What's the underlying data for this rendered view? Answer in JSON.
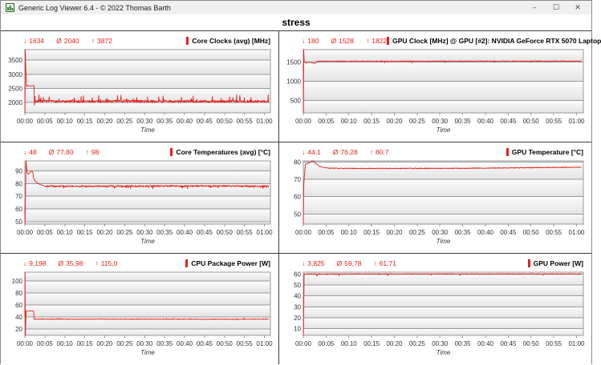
{
  "window": {
    "title": "Generic Log Viewer 6.4 - © 2022 Thomas Barth",
    "controls": {
      "minimize": "–",
      "maximize": "☐",
      "close": "✕"
    }
  },
  "header": {
    "title": "stress"
  },
  "stats_symbols": {
    "min": "↓",
    "avg": "Ø",
    "max": "↑"
  },
  "colors": {
    "accent": "#e2231a",
    "grid_line": "#9a9a9a",
    "plot_border": "#9a9a9a",
    "panel_border": "#3f3f3f",
    "titlebar_bg": "#f0f0f0",
    "band_top": "#fcfcfc",
    "band_bottom": "#e3e3e3",
    "tick_text": "#333333"
  },
  "axis": {
    "x_label": "Time",
    "x_tick_minutes": [
      0,
      5,
      10,
      15,
      20,
      25,
      30,
      35,
      40,
      45,
      50,
      55,
      60
    ],
    "x_tick_labels": [
      "00:00",
      "00:05",
      "00:10",
      "00:15",
      "00:20",
      "00:25",
      "00:30",
      "00:35",
      "00:40",
      "00:45",
      "00:50",
      "00:55",
      "01:00"
    ],
    "xlim": [
      0,
      61.5
    ]
  },
  "chart_data": [
    {
      "type": "line",
      "title": "Core Clocks (avg) [MHz]",
      "min": "1634",
      "avg": "2040",
      "max": "3872",
      "ylim": [
        1634,
        3872
      ],
      "y_ticks": [
        2000,
        2500,
        3000,
        3500
      ],
      "points": [
        [
          0,
          2600
        ],
        [
          0.03,
          1634
        ],
        [
          0.1,
          3872
        ],
        [
          0.25,
          3100
        ],
        [
          0.4,
          2580
        ],
        [
          0.8,
          2600
        ],
        [
          1.4,
          2580
        ],
        [
          2.0,
          2600
        ],
        [
          2.3,
          2600
        ],
        [
          2.38,
          1900
        ],
        [
          2.5,
          2040
        ],
        [
          61,
          2040
        ]
      ],
      "noise": {
        "from": 2.5,
        "amp": 45,
        "spike_p": 0.1,
        "spike_amp": 230
      },
      "seed": 7
    },
    {
      "type": "line",
      "title": "GPU Clock [MHz] @ GPU [#2]: NVIDIA GeForce RTX 5070 Laptop",
      "min": "180",
      "avg": "1528",
      "max": "1822",
      "ylim": [
        180,
        1822
      ],
      "y_ticks": [
        500,
        1000,
        1500
      ],
      "points": [
        [
          0,
          1450
        ],
        [
          0.04,
          180
        ],
        [
          0.09,
          1822
        ],
        [
          0.2,
          1510
        ],
        [
          0.6,
          1470
        ],
        [
          1.0,
          1490
        ],
        [
          1.6,
          1500
        ],
        [
          2.1,
          1470
        ],
        [
          2.6,
          1465
        ],
        [
          3.1,
          1520
        ],
        [
          61,
          1522
        ]
      ],
      "noise": {
        "from": 3.1,
        "amp": 10,
        "spike_p": 0.02,
        "spike_amp": -45
      },
      "seed": 11
    },
    {
      "type": "line",
      "title": "Core Temperatures (avg) [°C]",
      "min": "48",
      "avg": "77,80",
      "max": "98",
      "ylim": [
        48,
        98
      ],
      "y_ticks": [
        50,
        60,
        70,
        80,
        90
      ],
      "points": [
        [
          0,
          62
        ],
        [
          0.04,
          48
        ],
        [
          0.28,
          98
        ],
        [
          0.55,
          89
        ],
        [
          0.9,
          87.5
        ],
        [
          1.2,
          88.5
        ],
        [
          1.6,
          90
        ],
        [
          1.95,
          89.5
        ],
        [
          2.2,
          84
        ],
        [
          2.6,
          82
        ],
        [
          3.1,
          80.5
        ],
        [
          3.8,
          79.3
        ],
        [
          4.6,
          78.4
        ],
        [
          5.2,
          78
        ],
        [
          61,
          78.2
        ]
      ],
      "noise": {
        "from": 5.2,
        "amp": 0.6,
        "spike_p": 0.06,
        "spike_amp": -1.6
      },
      "seed": 23
    },
    {
      "type": "line",
      "title": "GPU Temperature [°C]",
      "min": "44,1",
      "avg": "76,28",
      "max": "80,7",
      "ylim": [
        44.1,
        80.7
      ],
      "y_ticks": [
        50,
        60,
        70,
        80
      ],
      "points": [
        [
          0,
          44.1
        ],
        [
          0.12,
          68
        ],
        [
          0.45,
          78.8
        ],
        [
          1.1,
          79.4
        ],
        [
          1.9,
          80.4
        ],
        [
          2.2,
          80.7
        ],
        [
          2.7,
          79.3
        ],
        [
          3.4,
          77.8
        ],
        [
          4.2,
          77
        ],
        [
          5.5,
          76.5
        ],
        [
          9,
          76.3
        ],
        [
          35,
          76.4
        ],
        [
          55,
          76.9
        ],
        [
          61,
          77
        ]
      ],
      "noise": {
        "from": 5.5,
        "amp": 0.22,
        "spike_p": 0,
        "spike_amp": 0
      },
      "seed": 31
    },
    {
      "type": "line",
      "title": "CPU Package Power [W]",
      "min": "9,198",
      "avg": "35,98",
      "max": "115,0",
      "ylim": [
        9.198,
        115
      ],
      "y_ticks": [
        20,
        40,
        60,
        80,
        100
      ],
      "points": [
        [
          0,
          40
        ],
        [
          0.04,
          115
        ],
        [
          0.14,
          9.198
        ],
        [
          0.3,
          50
        ],
        [
          2.2,
          50
        ],
        [
          2.3,
          36.4
        ],
        [
          61,
          36.2
        ]
      ],
      "noise": {
        "from": 2.4,
        "amp": 0.5,
        "spike_p": 0.02,
        "spike_amp": 2
      },
      "seed": 41
    },
    {
      "type": "line",
      "title": "GPU Power [W]",
      "min": "3,825",
      "avg": "59,78",
      "max": "61,71",
      "ylim": [
        3.825,
        61.71
      ],
      "y_ticks": [
        10,
        20,
        30,
        40,
        50,
        60
      ],
      "points": [
        [
          0,
          4.5
        ],
        [
          0.03,
          3.825
        ],
        [
          0.18,
          60
        ],
        [
          2.85,
          60
        ],
        [
          3.0,
          58.2
        ],
        [
          3.2,
          60
        ],
        [
          61,
          60
        ]
      ],
      "noise": {
        "from": 0.3,
        "amp": 0.35,
        "spike_p": 0.015,
        "spike_amp": -1.6
      },
      "seed": 53
    }
  ]
}
